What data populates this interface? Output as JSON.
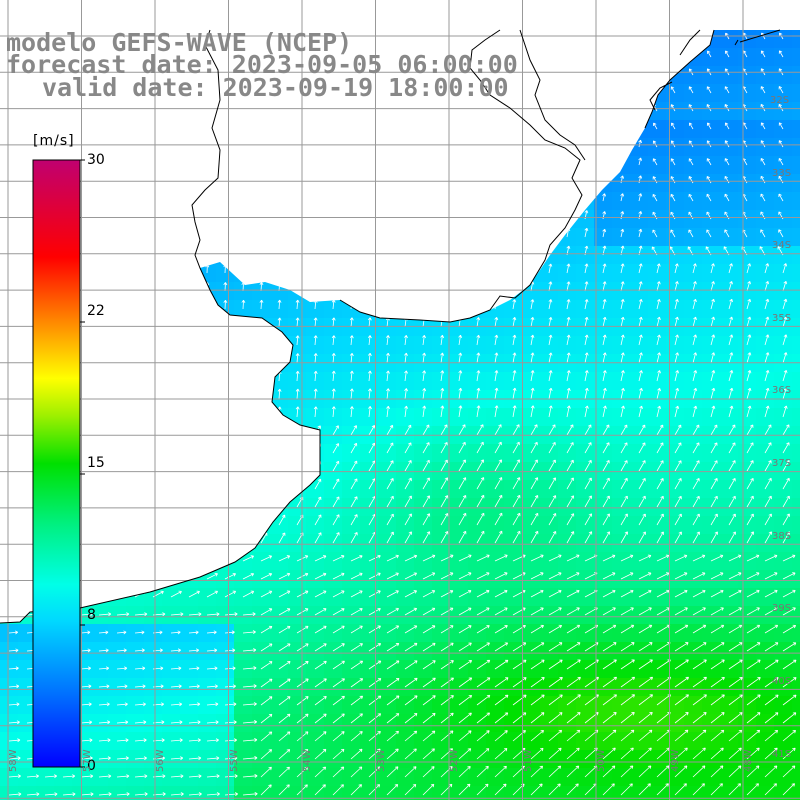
{
  "title": {
    "line1": "modelo GEFS-WAVE (NCEP)",
    "line2": "forecast date: 2023-09-05 06:00:00",
    "line3": "valid date: 2023-09-19 18:00:00"
  },
  "colorbar": {
    "unit": "[m/s]",
    "ticks": [
      "30",
      "22",
      "15",
      "8",
      "0"
    ],
    "tick_values": [
      30,
      22,
      15,
      8,
      0
    ],
    "range": [
      0,
      30
    ],
    "colors": [
      "#0000ff",
      "#00a0ff",
      "#00ffff",
      "#00e080",
      "#00e000",
      "#c0f000",
      "#ffff00",
      "#ff8000",
      "#ff0000",
      "#e0006a",
      "#b0007a"
    ]
  },
  "lat_labels": [
    "32S",
    "33S",
    "34S",
    "35S",
    "36S",
    "37S",
    "38S",
    "39S",
    "40S",
    "41S"
  ],
  "lon_labels": [
    "58W",
    "57W",
    "56W",
    "55W",
    "54W",
    "53W",
    "52W",
    "51W",
    "50W",
    "49W",
    "48W"
  ],
  "map": {
    "land_color": "#ffffff",
    "coast_color": "#000000",
    "grid_color": "#999999",
    "arrow_color": "#ffffff",
    "field_description": "wind speed at 10 m with direction arrows"
  },
  "chart_data": {
    "type": "heatmap",
    "variable": "wind speed",
    "unit": "m/s",
    "vmin": 0,
    "vmax": 30,
    "lat_range": [
      "31S",
      "41S"
    ],
    "lon_range": [
      "59W",
      "48W"
    ]
  }
}
